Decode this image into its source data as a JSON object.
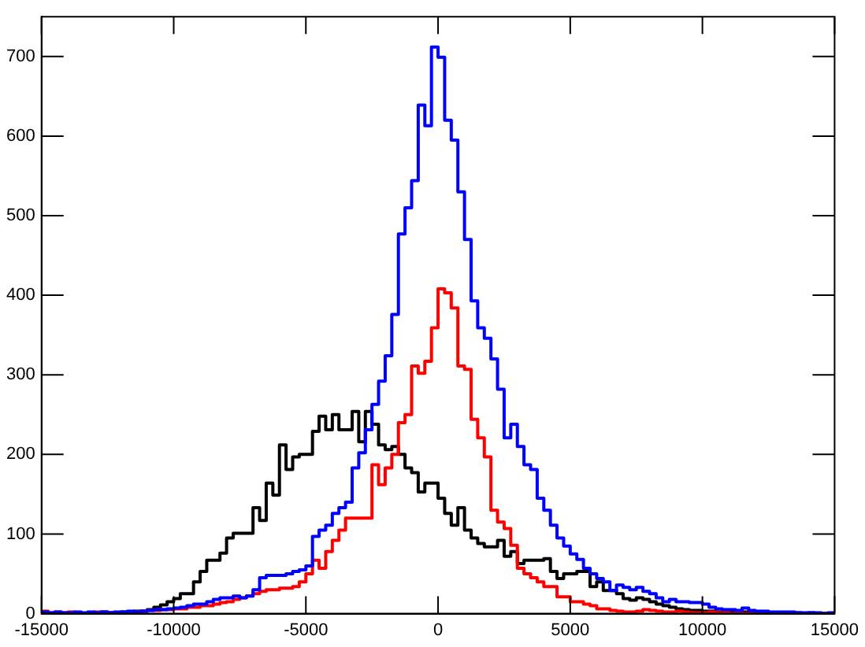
{
  "chart_data": {
    "type": "histogram",
    "bins": [
      -15000,
      -14750,
      -14500,
      -14250,
      -14000,
      -13750,
      -13500,
      -13250,
      -13000,
      -12750,
      -12500,
      -12250,
      -12000,
      -11750,
      -11500,
      -11250,
      -11000,
      -10750,
      -10500,
      -10250,
      -10000,
      -9750,
      -9500,
      -9250,
      -9000,
      -8750,
      -8500,
      -8250,
      -8000,
      -7750,
      -7500,
      -7250,
      -7000,
      -6750,
      -6500,
      -6250,
      -6000,
      -5750,
      -5500,
      -5250,
      -5000,
      -4750,
      -4500,
      -4250,
      -4000,
      -3750,
      -3500,
      -3250,
      -3000,
      -2750,
      -2500,
      -2250,
      -2000,
      -1750,
      -1500,
      -1250,
      -1000,
      -750,
      -500,
      -250,
      0,
      250,
      500,
      750,
      1000,
      1250,
      1500,
      1750,
      2000,
      2250,
      2500,
      2750,
      3000,
      3250,
      3500,
      3750,
      4000,
      4250,
      4500,
      4750,
      5000,
      5250,
      5500,
      5750,
      6000,
      6250,
      6500,
      6750,
      7000,
      7250,
      7500,
      7750,
      8000,
      8250,
      8500,
      8750,
      9000,
      9250,
      9500,
      9750,
      10000,
      10250,
      10500,
      10750,
      11000,
      11250,
      11500,
      11750,
      12000,
      12250,
      12500,
      12750,
      13000,
      13250,
      13500,
      13750,
      14000,
      14250,
      14500,
      14750,
      15000
    ],
    "series": [
      {
        "color": "#0000ff",
        "values": [
          2,
          1,
          2,
          1,
          1,
          2,
          1,
          2,
          1,
          2,
          1,
          2,
          2,
          3,
          2,
          3,
          4,
          5,
          5,
          6,
          7,
          8,
          10,
          12,
          12,
          15,
          18,
          20,
          20,
          22,
          20,
          22,
          30,
          45,
          48,
          48,
          48,
          50,
          53,
          55,
          60,
          97,
          105,
          111,
          126,
          133,
          140,
          183,
          202,
          231,
          263,
          292,
          324,
          376,
          477,
          510,
          544,
          639,
          613,
          712,
          699,
          620,
          595,
          530,
          470,
          393,
          359,
          346,
          320,
          282,
          221,
          238,
          210,
          187,
          181,
          145,
          130,
          111,
          95,
          85,
          75,
          68,
          57,
          50,
          44,
          40,
          29,
          36,
          33,
          30,
          33,
          28,
          25,
          20,
          15,
          18,
          15,
          15,
          14,
          14,
          12,
          8,
          6,
          5,
          5,
          4,
          7,
          4,
          3,
          3,
          2,
          2,
          2,
          2,
          1,
          1,
          1,
          1,
          0,
          1
        ]
      },
      {
        "color": "#ff0000",
        "values": [
          3,
          1,
          2,
          1,
          2,
          1,
          0,
          1,
          2,
          1,
          1,
          1,
          1,
          2,
          2,
          3,
          4,
          4,
          5,
          5,
          6,
          6,
          8,
          8,
          10,
          10,
          12,
          14,
          15,
          18,
          20,
          22,
          25,
          28,
          30,
          30,
          32,
          32,
          34,
          40,
          50,
          67,
          57,
          78,
          92,
          105,
          120,
          120,
          120,
          120,
          187,
          162,
          183,
          200,
          240,
          250,
          311,
          302,
          317,
          359,
          408,
          403,
          384,
          311,
          307,
          244,
          221,
          197,
          130,
          115,
          107,
          86,
          57,
          50,
          45,
          40,
          34,
          34,
          21,
          21,
          15,
          15,
          12,
          10,
          6,
          6,
          4,
          3,
          2,
          2,
          3,
          5,
          4,
          3,
          2,
          2,
          3,
          2,
          1,
          1,
          1,
          2,
          1,
          1,
          0,
          1,
          0,
          0,
          1,
          0,
          0,
          0,
          0,
          1,
          0,
          0,
          0,
          0,
          0,
          0
        ]
      },
      {
        "color": "#000000",
        "values": [
          1,
          0,
          1,
          0,
          1,
          1,
          0,
          1,
          1,
          2,
          1,
          1,
          2,
          2,
          3,
          3,
          5,
          8,
          11,
          15,
          19,
          25,
          25,
          40,
          53,
          67,
          67,
          76,
          95,
          101,
          101,
          101,
          133,
          117,
          164,
          149,
          212,
          181,
          197,
          200,
          200,
          229,
          248,
          231,
          250,
          231,
          231,
          254,
          216,
          254,
          238,
          212,
          206,
          210,
          200,
          183,
          177,
          153,
          164,
          164,
          145,
          126,
          111,
          133,
          105,
          95,
          88,
          84,
          84,
          92,
          72,
          78,
          63,
          67,
          67,
          67,
          69,
          53,
          44,
          50,
          50,
          53,
          53,
          34,
          40,
          29,
          29,
          25,
          19,
          17,
          20,
          18,
          15,
          12,
          10,
          8,
          6,
          5,
          4,
          4,
          3,
          3,
          2,
          3,
          2,
          2,
          2,
          1,
          1,
          2,
          1,
          1,
          1,
          0,
          1,
          0,
          1,
          0,
          0,
          0
        ]
      }
    ],
    "xlim": [
      -15000,
      15000
    ],
    "xticks": [
      -15000,
      -10000,
      -5000,
      0,
      5000,
      10000,
      15000
    ],
    "ylim": [
      0,
      750
    ],
    "yticks": [
      0,
      100,
      200,
      300,
      400,
      500,
      600,
      700
    ]
  }
}
